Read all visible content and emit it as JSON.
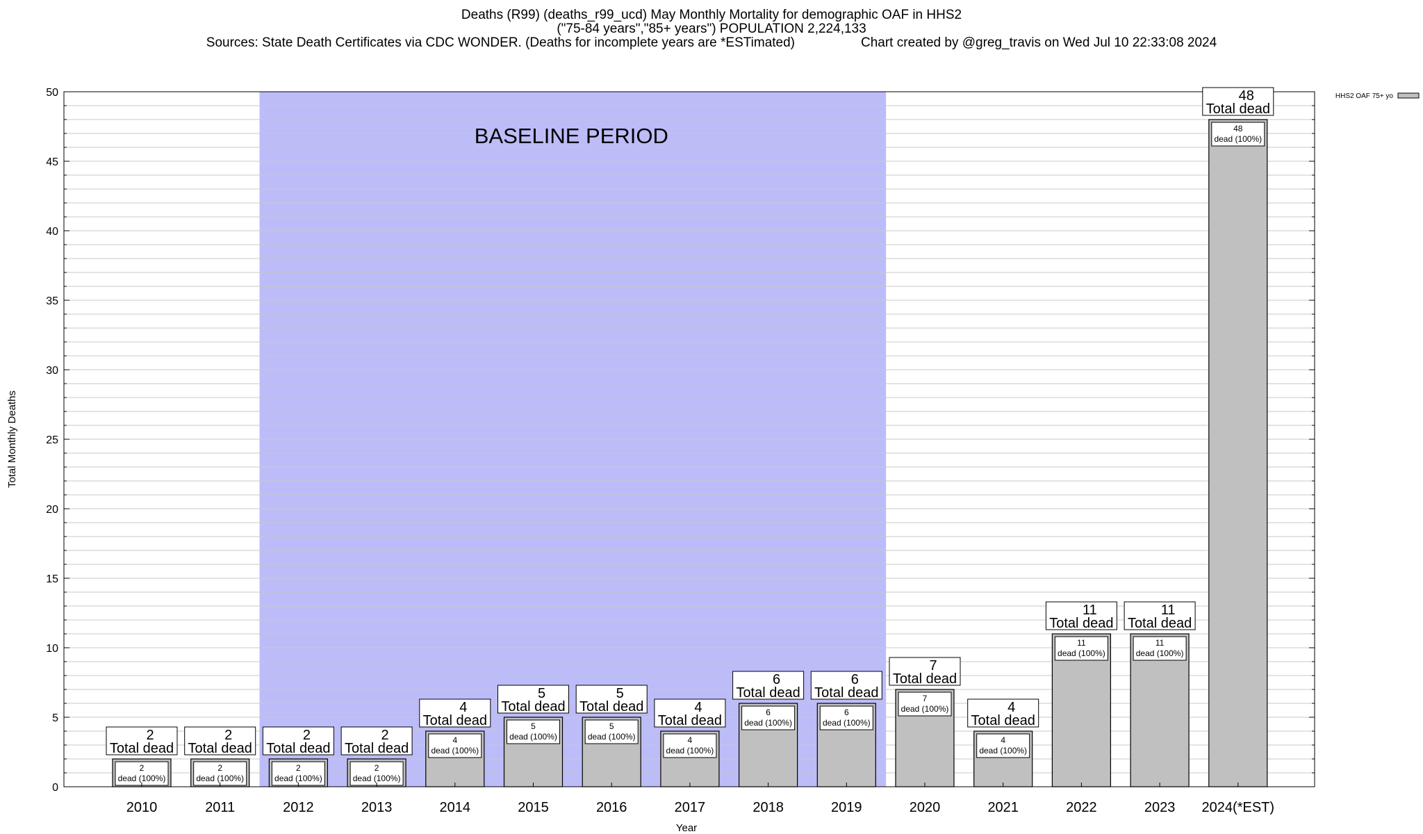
{
  "chart_data": {
    "type": "bar",
    "title": "Deaths (R99) (deaths_r99_ucd) May Monthly Mortality for demographic OAF in HHS2",
    "subtitle": "(\"75-84 years\",\"85+ years\") POPULATION 2,224,133",
    "source_line": "Sources: State Death Certificates via CDC WONDER. (Deaths for incomplete years are *ESTimated)",
    "credit_line": "Chart created by @greg_travis on Wed Jul 10 22:33:08 2024",
    "xlabel": "Year",
    "ylabel": "Total Monthly Deaths",
    "ylim": [
      0,
      50
    ],
    "yticks": [
      0,
      5,
      10,
      15,
      20,
      25,
      30,
      35,
      40,
      45,
      50
    ],
    "minor_grid_step": 1,
    "grid": true,
    "legend": {
      "position": "top-right",
      "entries": [
        "HHS2 OAF 75+ yo"
      ]
    },
    "categories": [
      "2010",
      "2011",
      "2012",
      "2013",
      "2014",
      "2015",
      "2016",
      "2017",
      "2018",
      "2019",
      "2020",
      "2021",
      "2022",
      "2023",
      "2024(*EST)"
    ],
    "series": [
      {
        "name": "HHS2 OAF 75+ yo",
        "values": [
          2,
          2,
          2,
          2,
          4,
          5,
          5,
          4,
          6,
          6,
          7,
          4,
          11,
          11,
          48
        ]
      }
    ],
    "total_labels": [
      "2",
      "2",
      "2",
      "2",
      "4",
      "5",
      "5",
      "4",
      "6",
      "6",
      "7",
      "4",
      "11",
      "11",
      "48"
    ],
    "total_suffix": "Total dead",
    "segment_labels": [
      "2",
      "2",
      "2",
      "2",
      "4",
      "5",
      "5",
      "4",
      "6",
      "6",
      "7",
      "4",
      "11",
      "11",
      "48"
    ],
    "segment_suffix": "dead (100%)",
    "baseline": {
      "label": "BASELINE PERIOD",
      "from": "2012",
      "to": "2019",
      "color": "#bcbcf9"
    },
    "colors": {
      "bar": "#c0c0c0",
      "grid": "#c8c8c8"
    }
  }
}
